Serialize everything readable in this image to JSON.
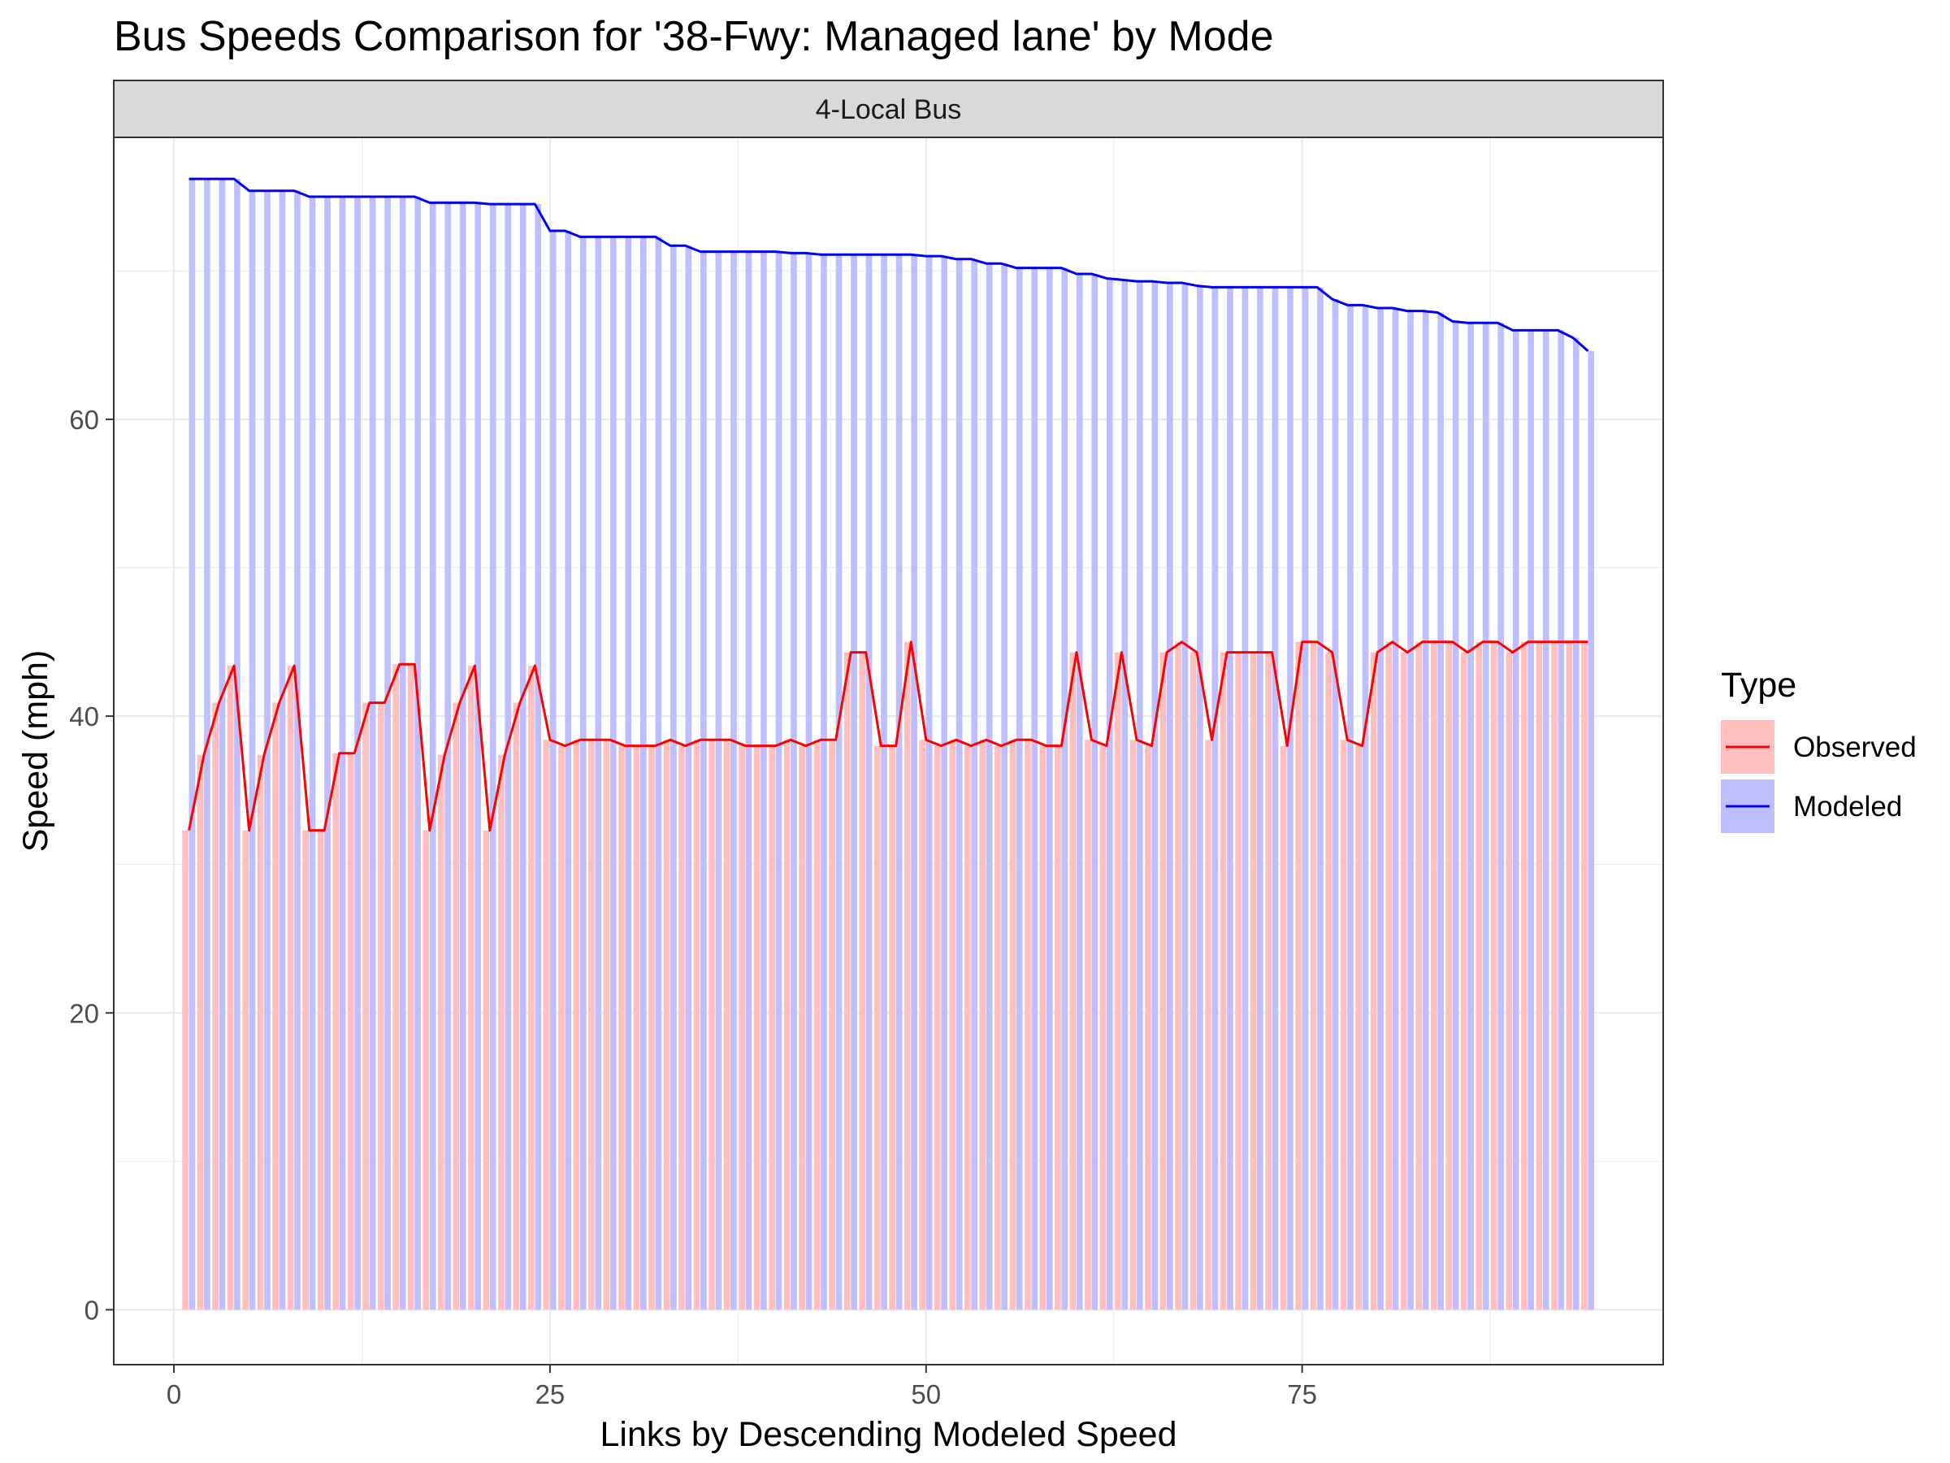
{
  "chart_data": {
    "type": "bar",
    "title": "Bus Speeds Comparison for '38-Fwy: Managed lane' by Mode",
    "facet_label": "4-Local Bus",
    "xlabel": "Links by Descending Modeled Speed",
    "ylabel": "Speed (mph)",
    "xlim": [
      -4,
      99
    ],
    "ylim": [
      -3.7,
      79
    ],
    "x_ticks": [
      0,
      25,
      50,
      75
    ],
    "y_ticks": [
      0,
      20,
      40,
      60
    ],
    "grid": true,
    "legend": {
      "title": "Type",
      "position": "right",
      "entries": [
        {
          "label": "Observed",
          "fill": "#FFBFBF",
          "line": "#FF0000"
        },
        {
          "label": "Modeled",
          "fill": "#BFBFFF",
          "line": "#0000FF"
        }
      ]
    },
    "series": [
      {
        "name": "Observed",
        "color": "#FF0000",
        "fill": "#FFBFBF",
        "values": [
          32.3,
          37.4,
          40.9,
          43.4,
          32.3,
          37.4,
          40.9,
          43.4,
          32.3,
          32.3,
          37.5,
          37.5,
          40.9,
          40.9,
          43.5,
          43.5,
          32.3,
          37.4,
          40.9,
          43.4,
          32.3,
          37.4,
          40.9,
          43.4,
          38.4,
          38.0,
          38.4,
          38.4,
          38.4,
          38.0,
          38.0,
          38.0,
          38.4,
          38.0,
          38.4,
          38.4,
          38.4,
          38.0,
          38.0,
          38.0,
          38.4,
          38.0,
          38.4,
          38.4,
          44.3,
          44.3,
          38.0,
          38.0,
          45.0,
          38.4,
          38.0,
          38.4,
          38.0,
          38.4,
          38.0,
          38.4,
          38.4,
          38.0,
          38.0,
          44.3,
          38.4,
          38.0,
          44.3,
          38.4,
          38.0,
          44.3,
          45.0,
          44.3,
          38.4,
          44.3,
          44.3,
          44.3,
          44.3,
          38.0,
          45.0,
          45.0,
          44.3,
          38.4,
          38.0,
          44.3,
          45.0,
          44.3,
          45.0,
          45.0,
          45.0,
          44.3,
          45.0,
          45.0,
          44.3,
          45.0,
          45.0,
          45.0,
          45.0,
          45.0
        ]
      },
      {
        "name": "Modeled",
        "color": "#0000FF",
        "fill": "#BFBFFF",
        "values": [
          76.2,
          76.2,
          76.2,
          76.2,
          75.4,
          75.4,
          75.4,
          75.4,
          75.0,
          75.0,
          75.0,
          75.0,
          75.0,
          75.0,
          75.0,
          75.0,
          74.6,
          74.6,
          74.6,
          74.6,
          74.5,
          74.5,
          74.5,
          74.5,
          72.7,
          72.7,
          72.3,
          72.3,
          72.3,
          72.3,
          72.3,
          72.3,
          71.7,
          71.7,
          71.3,
          71.3,
          71.3,
          71.3,
          71.3,
          71.3,
          71.2,
          71.2,
          71.1,
          71.1,
          71.1,
          71.1,
          71.1,
          71.1,
          71.1,
          71.0,
          71.0,
          70.8,
          70.8,
          70.5,
          70.5,
          70.2,
          70.2,
          70.2,
          70.2,
          69.8,
          69.8,
          69.5,
          69.4,
          69.3,
          69.3,
          69.2,
          69.2,
          69.0,
          68.9,
          68.9,
          68.9,
          68.9,
          68.9,
          68.9,
          68.9,
          68.9,
          68.1,
          67.7,
          67.7,
          67.5,
          67.5,
          67.3,
          67.3,
          67.2,
          66.6,
          66.5,
          66.5,
          66.5,
          66.0,
          66.0,
          66.0,
          66.0,
          65.5,
          64.6
        ]
      }
    ]
  }
}
